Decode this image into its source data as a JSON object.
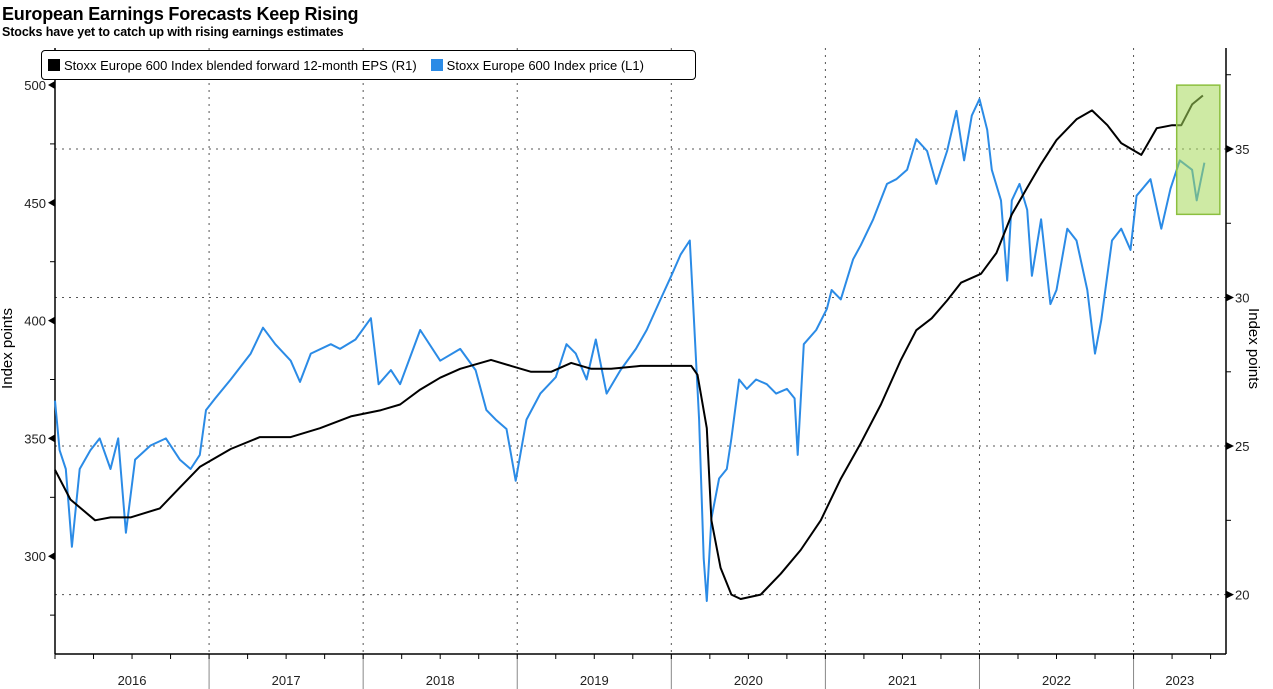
{
  "chart_data": {
    "type": "line",
    "title": "European Earnings Forecasts Keep Rising",
    "subtitle": "Stocks have yet to catch up with rising earnings estimates",
    "ylabel_left": "Index points",
    "ylabel_right": "Index points",
    "xlim": [
      2016.0,
      2023.6
    ],
    "ylim_left": [
      258.5,
      515.7
    ],
    "ylim_right": [
      18.0,
      38.4
    ],
    "x_tick_labels": [
      "2016",
      "2017",
      "2018",
      "2019",
      "2020",
      "2021",
      "2022",
      "2023"
    ],
    "y_left_ticks": [
      "300",
      "350",
      "400",
      "450",
      "500"
    ],
    "y_right_ticks": [
      "20",
      "25",
      "30",
      "35"
    ],
    "grid": true,
    "legend_position": "top-left",
    "colors": {
      "price": "#2b8be6",
      "eps": "#000000",
      "highlight": "#a6d85a"
    },
    "highlight": {
      "x": [
        2023.28,
        2023.56
      ],
      "y_right": [
        32.8,
        37.15
      ]
    },
    "series": [
      {
        "name": "Stoxx Europe 600 Index blended forward 12-month EPS (R1)",
        "axis": "right",
        "x": [
          2016.0,
          2016.1,
          2016.26,
          2016.36,
          2016.49,
          2016.68,
          2016.81,
          2016.94,
          2017.14,
          2017.33,
          2017.53,
          2017.72,
          2017.92,
          2018.11,
          2018.24,
          2018.37,
          2018.5,
          2018.63,
          2018.83,
          2018.96,
          2019.09,
          2019.22,
          2019.35,
          2019.48,
          2019.61,
          2019.8,
          2019.97,
          2020.13,
          2020.17,
          2020.23,
          2020.26,
          2020.32,
          2020.39,
          2020.45,
          2020.58,
          2020.71,
          2020.84,
          2020.97,
          2021.1,
          2021.23,
          2021.36,
          2021.49,
          2021.59,
          2021.69,
          2021.79,
          2021.88,
          2022.01,
          2022.11,
          2022.21,
          2022.31,
          2022.4,
          2022.5,
          2022.63,
          2022.73,
          2022.83,
          2022.92,
          2023.05,
          2023.15,
          2023.25,
          2023.31,
          2023.38,
          2023.45
        ],
        "values": [
          24.2,
          23.2,
          22.5,
          22.6,
          22.6,
          22.9,
          23.6,
          24.3,
          24.9,
          25.3,
          25.3,
          25.6,
          26.0,
          26.2,
          26.4,
          26.9,
          27.3,
          27.6,
          27.9,
          27.7,
          27.5,
          27.5,
          27.8,
          27.6,
          27.6,
          27.7,
          27.7,
          27.7,
          27.4,
          25.6,
          22.5,
          20.9,
          20.0,
          19.85,
          20.0,
          20.7,
          21.5,
          22.5,
          23.9,
          25.1,
          26.4,
          27.9,
          28.9,
          29.3,
          29.9,
          30.5,
          30.8,
          31.5,
          32.8,
          33.7,
          34.5,
          35.3,
          36.0,
          36.3,
          35.8,
          35.2,
          34.8,
          35.7,
          35.8,
          35.8,
          36.5,
          36.8
        ]
      },
      {
        "name": "Stoxx Europe 600 Index price (L1)",
        "axis": "left",
        "x": [
          2016.0,
          2016.03,
          2016.07,
          2016.11,
          2016.16,
          2016.23,
          2016.29,
          2016.36,
          2016.41,
          2016.46,
          2016.52,
          2016.62,
          2016.72,
          2016.81,
          2016.88,
          2016.94,
          2016.98,
          2017.04,
          2017.14,
          2017.27,
          2017.35,
          2017.43,
          2017.53,
          2017.59,
          2017.66,
          2017.79,
          2017.85,
          2017.95,
          2018.05,
          2018.1,
          2018.18,
          2018.24,
          2018.37,
          2018.5,
          2018.63,
          2018.73,
          2018.8,
          2018.86,
          2018.93,
          2018.99,
          2019.06,
          2019.15,
          2019.25,
          2019.32,
          2019.38,
          2019.45,
          2019.51,
          2019.58,
          2019.67,
          2019.77,
          2019.84,
          2019.93,
          2020.0,
          2020.06,
          2020.12,
          2020.14,
          2020.18,
          2020.21,
          2020.23,
          2020.26,
          2020.31,
          2020.36,
          2020.39,
          2020.44,
          2020.49,
          2020.55,
          2020.62,
          2020.68,
          2020.75,
          2020.8,
          2020.82,
          2020.86,
          2020.94,
          2021.01,
          2021.04,
          2021.1,
          2021.18,
          2021.23,
          2021.31,
          2021.4,
          2021.46,
          2021.53,
          2021.59,
          2021.66,
          2021.72,
          2021.79,
          2021.85,
          2021.9,
          2021.95,
          2022.0,
          2022.05,
          2022.08,
          2022.14,
          2022.18,
          2022.21,
          2022.26,
          2022.31,
          2022.34,
          2022.4,
          2022.46,
          2022.5,
          2022.57,
          2022.63,
          2022.7,
          2022.75,
          2022.79,
          2022.86,
          2022.92,
          2022.98,
          2023.02,
          2023.11,
          2023.18,
          2023.24,
          2023.3,
          2023.38,
          2023.41,
          2023.46
        ],
        "values": [
          366,
          345,
          337,
          304,
          337,
          345,
          350,
          337,
          350,
          310,
          341,
          347,
          350,
          341,
          337,
          343,
          362,
          367,
          375,
          386,
          397,
          390,
          383,
          374,
          386,
          390,
          388,
          392,
          401,
          373,
          379,
          373,
          396,
          383,
          388,
          379,
          362,
          358,
          354,
          332,
          358,
          369,
          376,
          390,
          386,
          375,
          392,
          369,
          379,
          388,
          396,
          409,
          419,
          428,
          434,
          409,
          358,
          299,
          281,
          316,
          333,
          337,
          350,
          375,
          371,
          375,
          373,
          369,
          371,
          367,
          343,
          390,
          396,
          405,
          413,
          409,
          426,
          432,
          443,
          458,
          460,
          464,
          477,
          472,
          458,
          472,
          489,
          468,
          487,
          494,
          481,
          464,
          451,
          417,
          451,
          458,
          447,
          419,
          443,
          407,
          413,
          439,
          434,
          413,
          386,
          400,
          434,
          439,
          430,
          453,
          460,
          439,
          456,
          468,
          464,
          451,
          467
        ]
      }
    ]
  }
}
